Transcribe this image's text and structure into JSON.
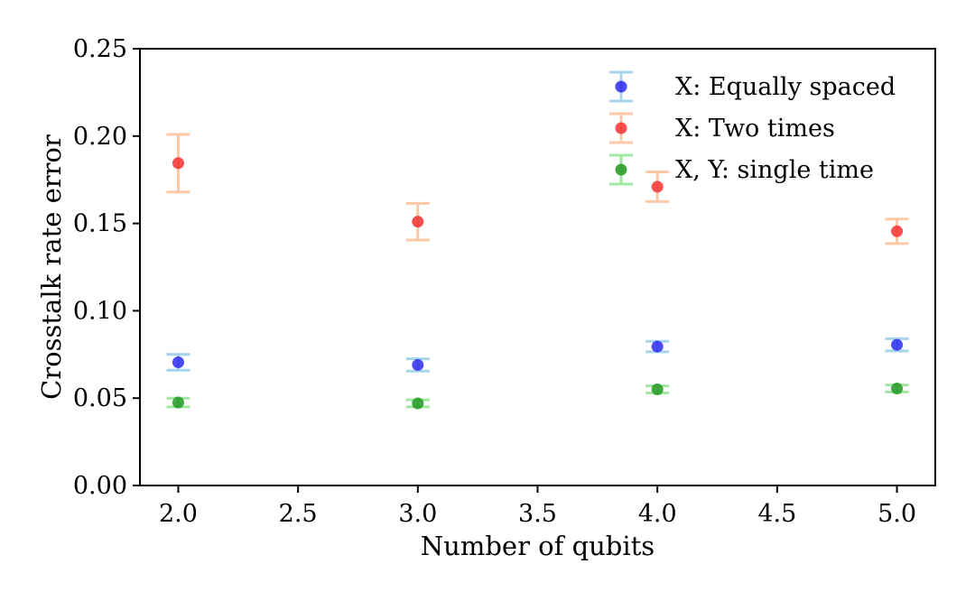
{
  "chart_data": {
    "type": "scatter",
    "title": "",
    "xlabel": "Number of qubits",
    "ylabel": "Crosstalk rate error",
    "xlim": [
      1.84,
      5.16
    ],
    "ylim": [
      0.0,
      0.25
    ],
    "xticks": [
      "2.0",
      "2.5",
      "3.0",
      "3.5",
      "4.0",
      "4.5",
      "5.0"
    ],
    "yticks": [
      "0.00",
      "0.05",
      "0.10",
      "0.15",
      "0.20",
      "0.25"
    ],
    "grid": false,
    "legend_position": "top-right",
    "series": [
      {
        "name": "X: Equally spaced",
        "marker_color": "#2b2bf0",
        "errorbar_color": "#a6d4ec",
        "x": [
          2.0,
          3.0,
          4.0,
          5.0
        ],
        "y": [
          0.0705,
          0.069,
          0.0795,
          0.0805
        ],
        "yerr": [
          0.0045,
          0.0035,
          0.003,
          0.0035
        ]
      },
      {
        "name": "X: Two times",
        "marker_color": "#f53030",
        "errorbar_color": "#fcc9a6",
        "x": [
          2.0,
          3.0,
          4.0,
          5.0
        ],
        "y": [
          0.1845,
          0.151,
          0.171,
          0.1455
        ],
        "yerr": [
          0.0165,
          0.0105,
          0.0085,
          0.007
        ]
      },
      {
        "name": "X, Y: single time",
        "marker_color": "#229922",
        "errorbar_color": "#a3e6a3",
        "x": [
          2.0,
          3.0,
          4.0,
          5.0
        ],
        "y": [
          0.0475,
          0.047,
          0.055,
          0.0555
        ],
        "yerr": [
          0.0025,
          0.002,
          0.002,
          0.002
        ]
      }
    ]
  }
}
